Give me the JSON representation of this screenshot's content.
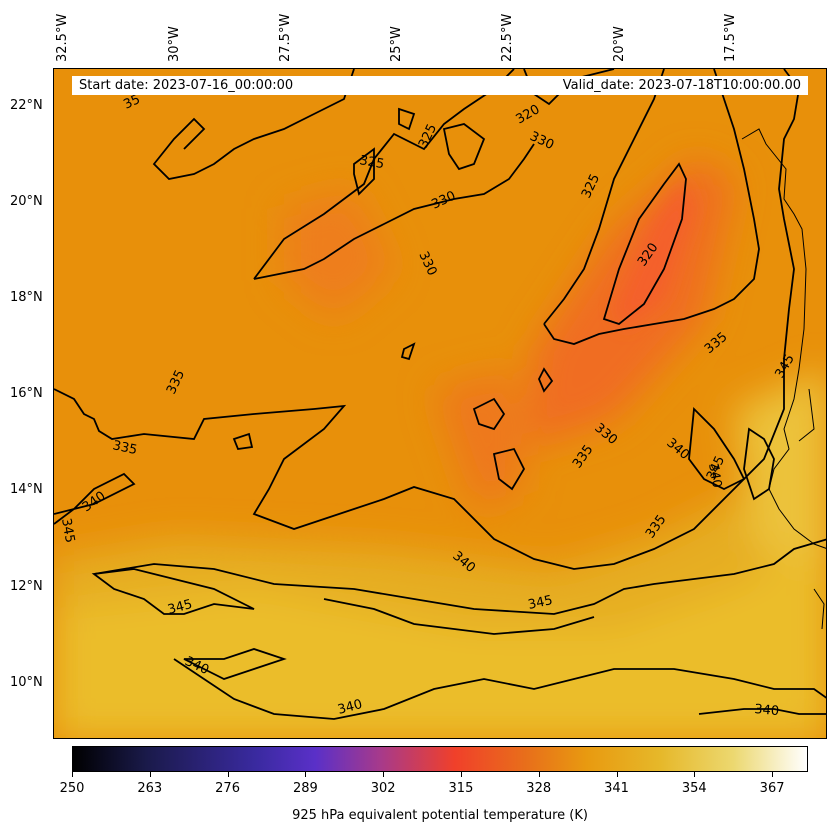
{
  "map": {
    "start_date": "Start date: 2023-07-16_00:00:00",
    "valid_date": "Valid_date: 2023-07-18T10:00:00.00",
    "longitude_labels": [
      "32.5°W",
      "30°W",
      "27.5°W",
      "25°W",
      "22.5°W",
      "20°W",
      "17.5°W"
    ],
    "latitude_labels": [
      "22°N",
      "20°N",
      "18°N",
      "16°N",
      "14°N",
      "12°N",
      "10°N"
    ],
    "contour_labels": [
      {
        "text": "325"
      },
      {
        "text": "320"
      },
      {
        "text": "330"
      },
      {
        "text": "325"
      },
      {
        "text": "330"
      },
      {
        "text": "330"
      },
      {
        "text": "325"
      },
      {
        "text": "320"
      },
      {
        "text": "335"
      },
      {
        "text": "335"
      },
      {
        "text": "340"
      },
      {
        "text": "345"
      },
      {
        "text": "335"
      },
      {
        "text": "330"
      },
      {
        "text": "335"
      },
      {
        "text": "340"
      },
      {
        "text": "345"
      },
      {
        "text": "340"
      },
      {
        "text": "340"
      },
      {
        "text": "345"
      },
      {
        "text": "340"
      },
      {
        "text": "340"
      },
      {
        "text": "345"
      },
      {
        "text": "340"
      },
      {
        "text": "345"
      },
      {
        "text": "35"
      },
      {
        "text": "335"
      }
    ],
    "colors": {
      "background_main": "#e8900a",
      "cool_core": "#f26a22",
      "warm_band": "#ebb92a"
    }
  },
  "colorbar": {
    "title": "925 hPa equivalent potential temperature (K)",
    "ticks": [
      "250",
      "263",
      "276",
      "289",
      "302",
      "315",
      "328",
      "341",
      "354",
      "367"
    ],
    "range": [
      250,
      373
    ],
    "colormap": "CMRmap"
  }
}
